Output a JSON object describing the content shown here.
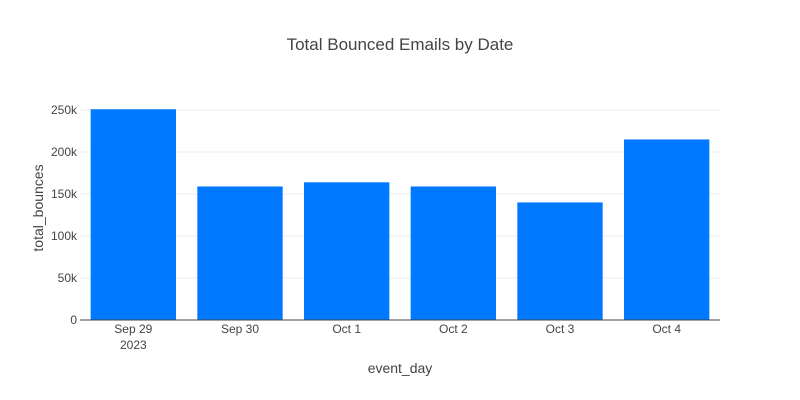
{
  "chart_data": {
    "type": "bar",
    "title": "Total Bounced Emails by Date",
    "xlabel": "event_day",
    "ylabel": "total_bounces",
    "categories": [
      "Sep 29",
      "Sep 30",
      "Oct 1",
      "Oct 2",
      "Oct 3",
      "Oct 4"
    ],
    "category_sublabels": [
      "2023",
      "",
      "",
      "",
      "",
      ""
    ],
    "values": [
      251000,
      159000,
      164000,
      159000,
      140000,
      215000
    ],
    "ylim": [
      0,
      262000
    ],
    "yticks": [
      0,
      50000,
      100000,
      150000,
      200000,
      250000
    ],
    "ytick_labels": [
      "0",
      "50k",
      "100k",
      "150k",
      "200k",
      "250k"
    ],
    "grid": true,
    "legend": "none",
    "colors": {
      "bar": "#0078FF",
      "grid": "#EEEEEE",
      "axis": "#444444",
      "text": "#444444",
      "background": "#FFFFFF"
    }
  }
}
